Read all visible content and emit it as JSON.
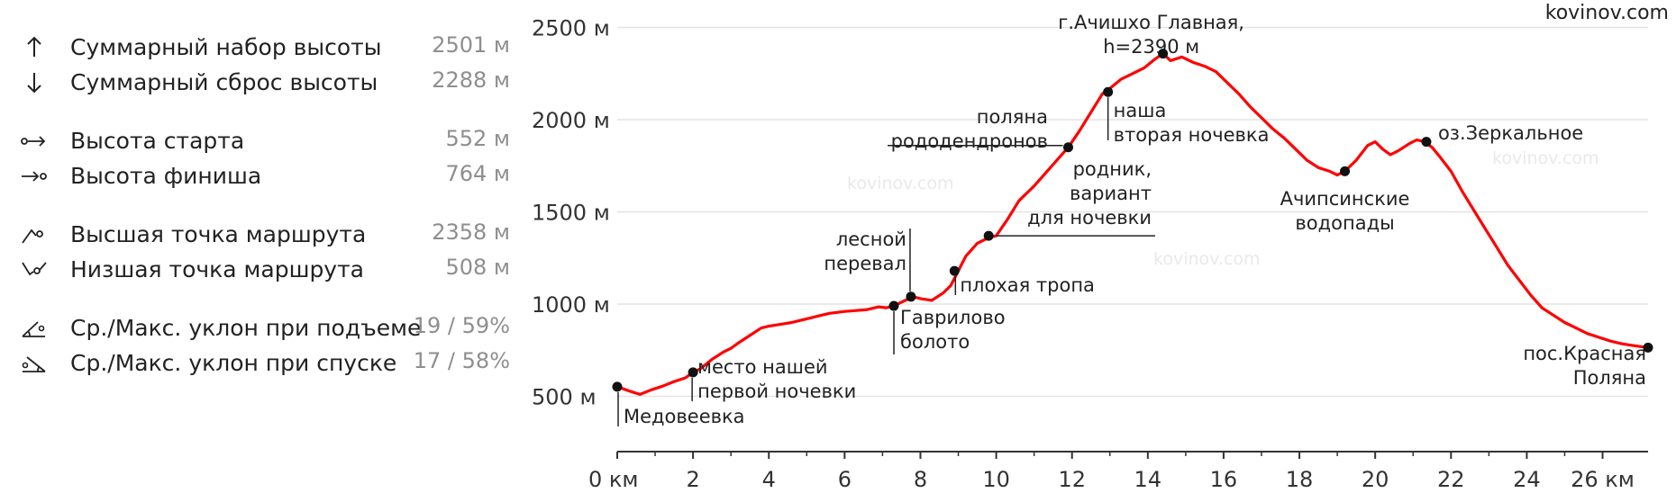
{
  "watermark": "kovinov.com",
  "watermarks_faint": [
    "kovinov.com",
    "kovinov.com",
    "kovinov.com"
  ],
  "stats": [
    {
      "icon": "arrow-up-icon",
      "label": "Суммарный набор высоты",
      "value": "2501 м"
    },
    {
      "icon": "arrow-down-icon",
      "label": "Суммарный сброс высоты",
      "value": "2288 м"
    },
    {
      "icon": "start-point-icon",
      "label": "Высота старта",
      "value": "552 м"
    },
    {
      "icon": "finish-point-icon",
      "label": "Высота финиша",
      "value": "764 м"
    },
    {
      "icon": "peak-icon",
      "label": "Высшая точка маршрута",
      "value": "2358 м"
    },
    {
      "icon": "valley-icon",
      "label": "Низшая точка маршрута",
      "value": "508 м"
    },
    {
      "icon": "uphill-slope-icon",
      "label": "Ср./Макс. уклон при подъеме",
      "value": "19 / 59%"
    },
    {
      "icon": "downhill-slope-icon",
      "label": "Ср./Макс. уклон при спуске",
      "value": "17 / 58%"
    }
  ],
  "colors": {
    "line": "#ff0000",
    "grid": "#e4e4e4",
    "axis": "#333333",
    "value_text": "#8e8e8e"
  },
  "chart_data": {
    "type": "line",
    "xlabel": "",
    "ylabel": "",
    "xlim": [
      0,
      27.2
    ],
    "ylim": [
      200,
      2600
    ],
    "grid": true,
    "x_ticks": [
      0,
      2,
      4,
      6,
      8,
      10,
      12,
      14,
      16,
      18,
      20,
      22,
      24,
      26
    ],
    "x_tick_labels": [
      "0 км",
      "2",
      "4",
      "6",
      "8",
      "10",
      "12",
      "14",
      "16",
      "18",
      "20",
      "22",
      "24",
      "26 км"
    ],
    "y_ticks": [
      500,
      1000,
      1500,
      2000,
      2500
    ],
    "y_tick_labels": [
      "500 м",
      "1000 м",
      "1500 м",
      "2000 м",
      "2500 м"
    ],
    "series": [
      {
        "x": [
          0,
          0.3,
          0.6,
          0.9,
          1.2,
          1.5,
          1.8,
          2.0,
          2.2,
          2.5,
          2.8,
          3.0,
          3.2,
          3.5,
          3.8,
          4.0,
          4.3,
          4.6,
          5.0,
          5.3,
          5.6,
          6.0,
          6.3,
          6.6,
          6.9,
          7.1,
          7.3,
          7.5,
          7.8,
          8.0,
          8.3,
          8.6,
          8.8,
          9.0,
          9.2,
          9.5,
          9.8,
          10.0,
          10.3,
          10.6,
          11.0,
          11.3,
          11.6,
          11.9,
          12.2,
          12.5,
          12.8,
          13.0,
          13.3,
          13.6,
          13.9,
          14.2,
          14.4,
          14.6,
          14.9,
          15.2,
          15.5,
          15.8,
          16.1,
          16.4,
          16.7,
          17.0,
          17.3,
          17.6,
          17.9,
          18.2,
          18.5,
          18.8,
          19.0,
          19.2,
          19.5,
          19.8,
          20.0,
          20.2,
          20.4,
          20.6,
          20.9,
          21.1,
          21.3,
          21.5,
          21.7,
          22.0,
          22.3,
          22.6,
          22.9,
          23.2,
          23.5,
          23.8,
          24.1,
          24.4,
          24.7,
          25.0,
          25.3,
          25.6,
          25.9,
          26.2,
          26.5,
          26.8,
          27.2
        ],
        "y": [
          552,
          530,
          510,
          535,
          555,
          580,
          600,
          630,
          650,
          700,
          740,
          760,
          790,
          830,
          870,
          880,
          890,
          900,
          920,
          935,
          950,
          960,
          965,
          970,
          985,
          980,
          990,
          1010,
          1040,
          1030,
          1020,
          1060,
          1100,
          1180,
          1260,
          1330,
          1360,
          1370,
          1460,
          1560,
          1640,
          1710,
          1780,
          1850,
          1940,
          2040,
          2140,
          2170,
          2220,
          2250,
          2280,
          2330,
          2358,
          2320,
          2340,
          2310,
          2290,
          2260,
          2200,
          2140,
          2070,
          2010,
          1950,
          1900,
          1840,
          1780,
          1740,
          1720,
          1700,
          1720,
          1780,
          1860,
          1880,
          1840,
          1810,
          1830,
          1870,
          1890,
          1880,
          1850,
          1800,
          1720,
          1610,
          1510,
          1410,
          1310,
          1210,
          1130,
          1050,
          980,
          940,
          900,
          870,
          840,
          820,
          800,
          785,
          775,
          764
        ]
      }
    ],
    "markers": [
      {
        "x": 0,
        "y": 552,
        "label": "Медовеевка"
      },
      {
        "x": 2.0,
        "y": 630,
        "label": "место нашей первой ночевки"
      },
      {
        "x": 7.3,
        "y": 990,
        "label": "Гаврилово болото"
      },
      {
        "x": 7.75,
        "y": 1040,
        "label": "лесной перевал"
      },
      {
        "x": 8.9,
        "y": 1180,
        "label": "плохая тропа"
      },
      {
        "x": 9.8,
        "y": 1370,
        "label": "родник, вариант для ночевки"
      },
      {
        "x": 11.9,
        "y": 1850,
        "label": "поляна рододендронов"
      },
      {
        "x": 12.95,
        "y": 2150,
        "label": "наша вторая ночевка"
      },
      {
        "x": 14.4,
        "y": 2358,
        "label": "г.Ачишхо Главная, h=2390 м"
      },
      {
        "x": 19.2,
        "y": 1720,
        "label": "Ачипсинские водопады"
      },
      {
        "x": 21.35,
        "y": 1880,
        "label": "оз.Зеркальное"
      },
      {
        "x": 27.2,
        "y": 764,
        "label": "пос.Красная Поляна"
      }
    ]
  }
}
